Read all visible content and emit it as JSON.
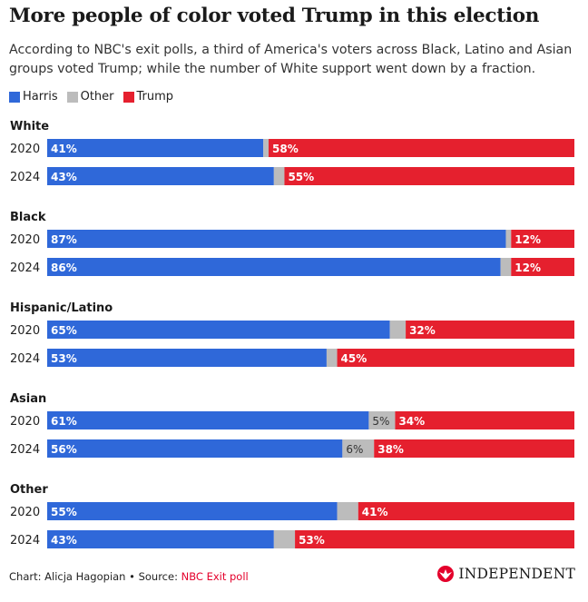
{
  "title": "More people of color voted Trump in this election",
  "subtitle": "According to NBC's exit polls, a third of America's voters across Black, Latino and Asian groups voted Trump; while the number of White support went down by a fraction.",
  "footer": {
    "credit": "Chart: Alicja Hagopian • Source: ",
    "source": "NBC Exit poll"
  },
  "brand": {
    "name": "INDEPENDENT",
    "logo_icon": "eagle-icon"
  },
  "colors": {
    "harris": "#2f68d9",
    "other": "#bcbcbc",
    "trump": "#e5202e"
  },
  "chart_data": {
    "type": "bar",
    "orientation": "horizontal",
    "stacked": true,
    "xlim": [
      0,
      100
    ],
    "legend": {
      "placement": "top-left"
    },
    "series": [
      {
        "name": "Harris"
      },
      {
        "name": "Other"
      },
      {
        "name": "Trump"
      }
    ],
    "groups": [
      {
        "label": "White",
        "rows": [
          {
            "year": "2020",
            "harris": 41,
            "other": 1,
            "trump": 58,
            "labels": [
              "41%",
              "",
              "58%"
            ]
          },
          {
            "year": "2024",
            "harris": 43,
            "other": 2,
            "trump": 55,
            "labels": [
              "43%",
              "",
              "55%"
            ]
          }
        ]
      },
      {
        "label": "Black",
        "rows": [
          {
            "year": "2020",
            "harris": 87,
            "other": 1,
            "trump": 12,
            "labels": [
              "87%",
              "",
              "12%"
            ]
          },
          {
            "year": "2024",
            "harris": 86,
            "other": 2,
            "trump": 12,
            "labels": [
              "86%",
              "",
              "12%"
            ]
          }
        ]
      },
      {
        "label": "Hispanic/Latino",
        "rows": [
          {
            "year": "2020",
            "harris": 65,
            "other": 3,
            "trump": 32,
            "labels": [
              "65%",
              "",
              "32%"
            ]
          },
          {
            "year": "2024",
            "harris": 53,
            "other": 2,
            "trump": 45,
            "labels": [
              "53%",
              "",
              "45%"
            ]
          }
        ]
      },
      {
        "label": "Asian",
        "rows": [
          {
            "year": "2020",
            "harris": 61,
            "other": 5,
            "trump": 34,
            "labels": [
              "61%",
              "5%",
              "34%"
            ]
          },
          {
            "year": "2024",
            "harris": 56,
            "other": 6,
            "trump": 38,
            "labels": [
              "56%",
              "6%",
              "38%"
            ]
          }
        ]
      },
      {
        "label": "Other",
        "rows": [
          {
            "year": "2020",
            "harris": 55,
            "other": 4,
            "trump": 41,
            "labels": [
              "55%",
              "",
              "41%"
            ]
          },
          {
            "year": "2024",
            "harris": 43,
            "other": 4,
            "trump": 53,
            "labels": [
              "43%",
              "",
              "53%"
            ]
          }
        ]
      }
    ]
  }
}
